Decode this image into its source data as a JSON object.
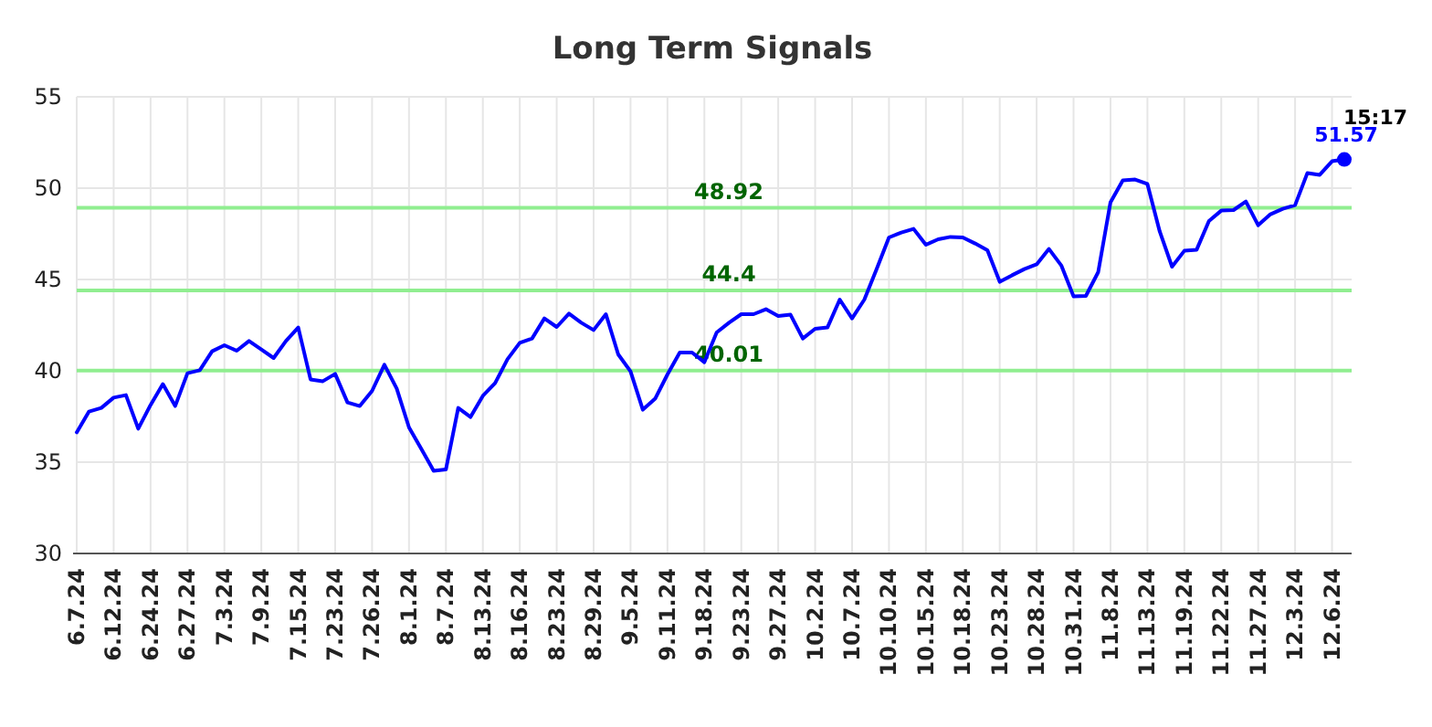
{
  "chart_data": {
    "type": "line",
    "title": "Long Term Signals",
    "categories": [
      "6.7.24",
      null,
      null,
      "6.12.24",
      null,
      null,
      "6.24.24",
      null,
      null,
      "6.27.24",
      null,
      null,
      "7.3.24",
      null,
      null,
      "7.9.24",
      null,
      null,
      "7.15.24",
      null,
      null,
      "7.23.24",
      null,
      null,
      "7.26.24",
      null,
      null,
      "8.1.24",
      null,
      null,
      "8.7.24",
      null,
      null,
      "8.13.24",
      null,
      null,
      "8.16.24",
      null,
      null,
      "8.23.24",
      null,
      null,
      "8.29.24",
      null,
      null,
      "9.5.24",
      null,
      null,
      "9.11.24",
      null,
      null,
      "9.18.24",
      null,
      null,
      "9.23.24",
      null,
      null,
      "9.27.24",
      null,
      null,
      "10.2.24",
      null,
      null,
      "10.7.24",
      null,
      null,
      "10.10.24",
      null,
      null,
      "10.15.24",
      null,
      null,
      "10.18.24",
      null,
      null,
      "10.23.24",
      null,
      null,
      "10.28.24",
      null,
      null,
      "10.31.24",
      null,
      null,
      "11.8.24",
      null,
      null,
      "11.13.24",
      null,
      null,
      "11.19.24",
      null,
      null,
      "11.22.24",
      null,
      null,
      "11.27.24",
      null,
      null,
      "12.3.24",
      null,
      null,
      "12.6.24",
      null
    ],
    "series": [
      {
        "color": "#0000ff",
        "values": [
          36.63,
          37.77,
          37.97,
          38.53,
          38.67,
          36.83,
          38.13,
          39.27,
          38.07,
          39.87,
          40.03,
          41.07,
          41.4,
          41.1,
          41.63,
          41.17,
          40.7,
          41.63,
          42.37,
          39.53,
          39.43,
          39.83,
          38.27,
          38.07,
          38.9,
          40.33,
          39.03,
          36.9,
          35.73,
          34.53,
          34.6,
          37.97,
          37.47,
          38.63,
          39.33,
          40.63,
          41.53,
          41.77,
          42.87,
          42.4,
          43.13,
          42.63,
          42.23,
          43.1,
          40.9,
          39.97,
          37.87,
          38.47,
          39.8,
          41.0,
          41.0,
          40.47,
          42.1,
          42.63,
          43.1,
          43.1,
          43.37,
          43.0,
          43.07,
          41.77,
          42.3,
          42.37,
          43.9,
          42.87,
          43.9,
          45.57,
          47.3,
          47.57,
          47.77,
          46.9,
          47.2,
          47.33,
          47.3,
          46.97,
          46.6,
          44.87,
          45.23,
          45.57,
          45.83,
          46.67,
          45.77,
          44.07,
          44.1,
          45.4,
          49.23,
          50.43,
          50.47,
          50.23,
          47.63,
          45.7,
          46.57,
          46.63,
          48.2,
          48.77,
          48.8,
          49.27,
          47.97,
          48.57,
          48.87,
          49.07,
          50.83,
          50.73,
          51.47,
          51.57
        ],
        "value_labels": [
          null,
          null,
          null,
          null,
          null,
          null,
          null,
          null,
          null,
          null,
          null,
          null,
          null,
          null,
          null,
          null,
          null,
          null,
          null,
          null,
          null,
          null,
          null,
          null,
          null,
          null,
          null,
          null,
          null,
          null,
          null,
          null,
          null,
          null,
          null,
          null,
          null,
          null,
          null,
          null,
          null,
          null,
          null,
          null,
          null,
          null,
          null,
          null,
          null,
          null,
          null,
          null,
          null,
          null,
          null,
          null,
          null,
          null,
          null,
          null,
          null,
          null,
          null,
          null,
          null,
          null,
          null,
          null,
          null,
          null,
          null,
          null,
          null,
          null,
          null,
          null,
          null,
          null,
          null,
          null,
          null,
          null,
          null,
          null,
          null,
          null,
          null,
          null,
          null,
          null,
          null,
          null,
          null,
          null,
          null,
          null,
          null,
          null,
          null,
          null,
          null,
          null,
          null,
          "51.57"
        ]
      }
    ],
    "ylim": [
      30,
      55
    ],
    "yticks": [
      30,
      35,
      40,
      45,
      50,
      55
    ],
    "grid": true,
    "marker": "none",
    "line_style": "solid",
    "ref_lines": [
      {
        "axis": "y",
        "value": 48.92,
        "label": "48.92",
        "color": "#90ee90"
      },
      {
        "axis": "y",
        "value": 44.4,
        "label": "44.4",
        "color": "#90ee90"
      },
      {
        "axis": "y",
        "value": 40.01,
        "label": "40.01",
        "color": "#90ee90"
      }
    ],
    "annotations": [
      "15:17"
    ]
  }
}
